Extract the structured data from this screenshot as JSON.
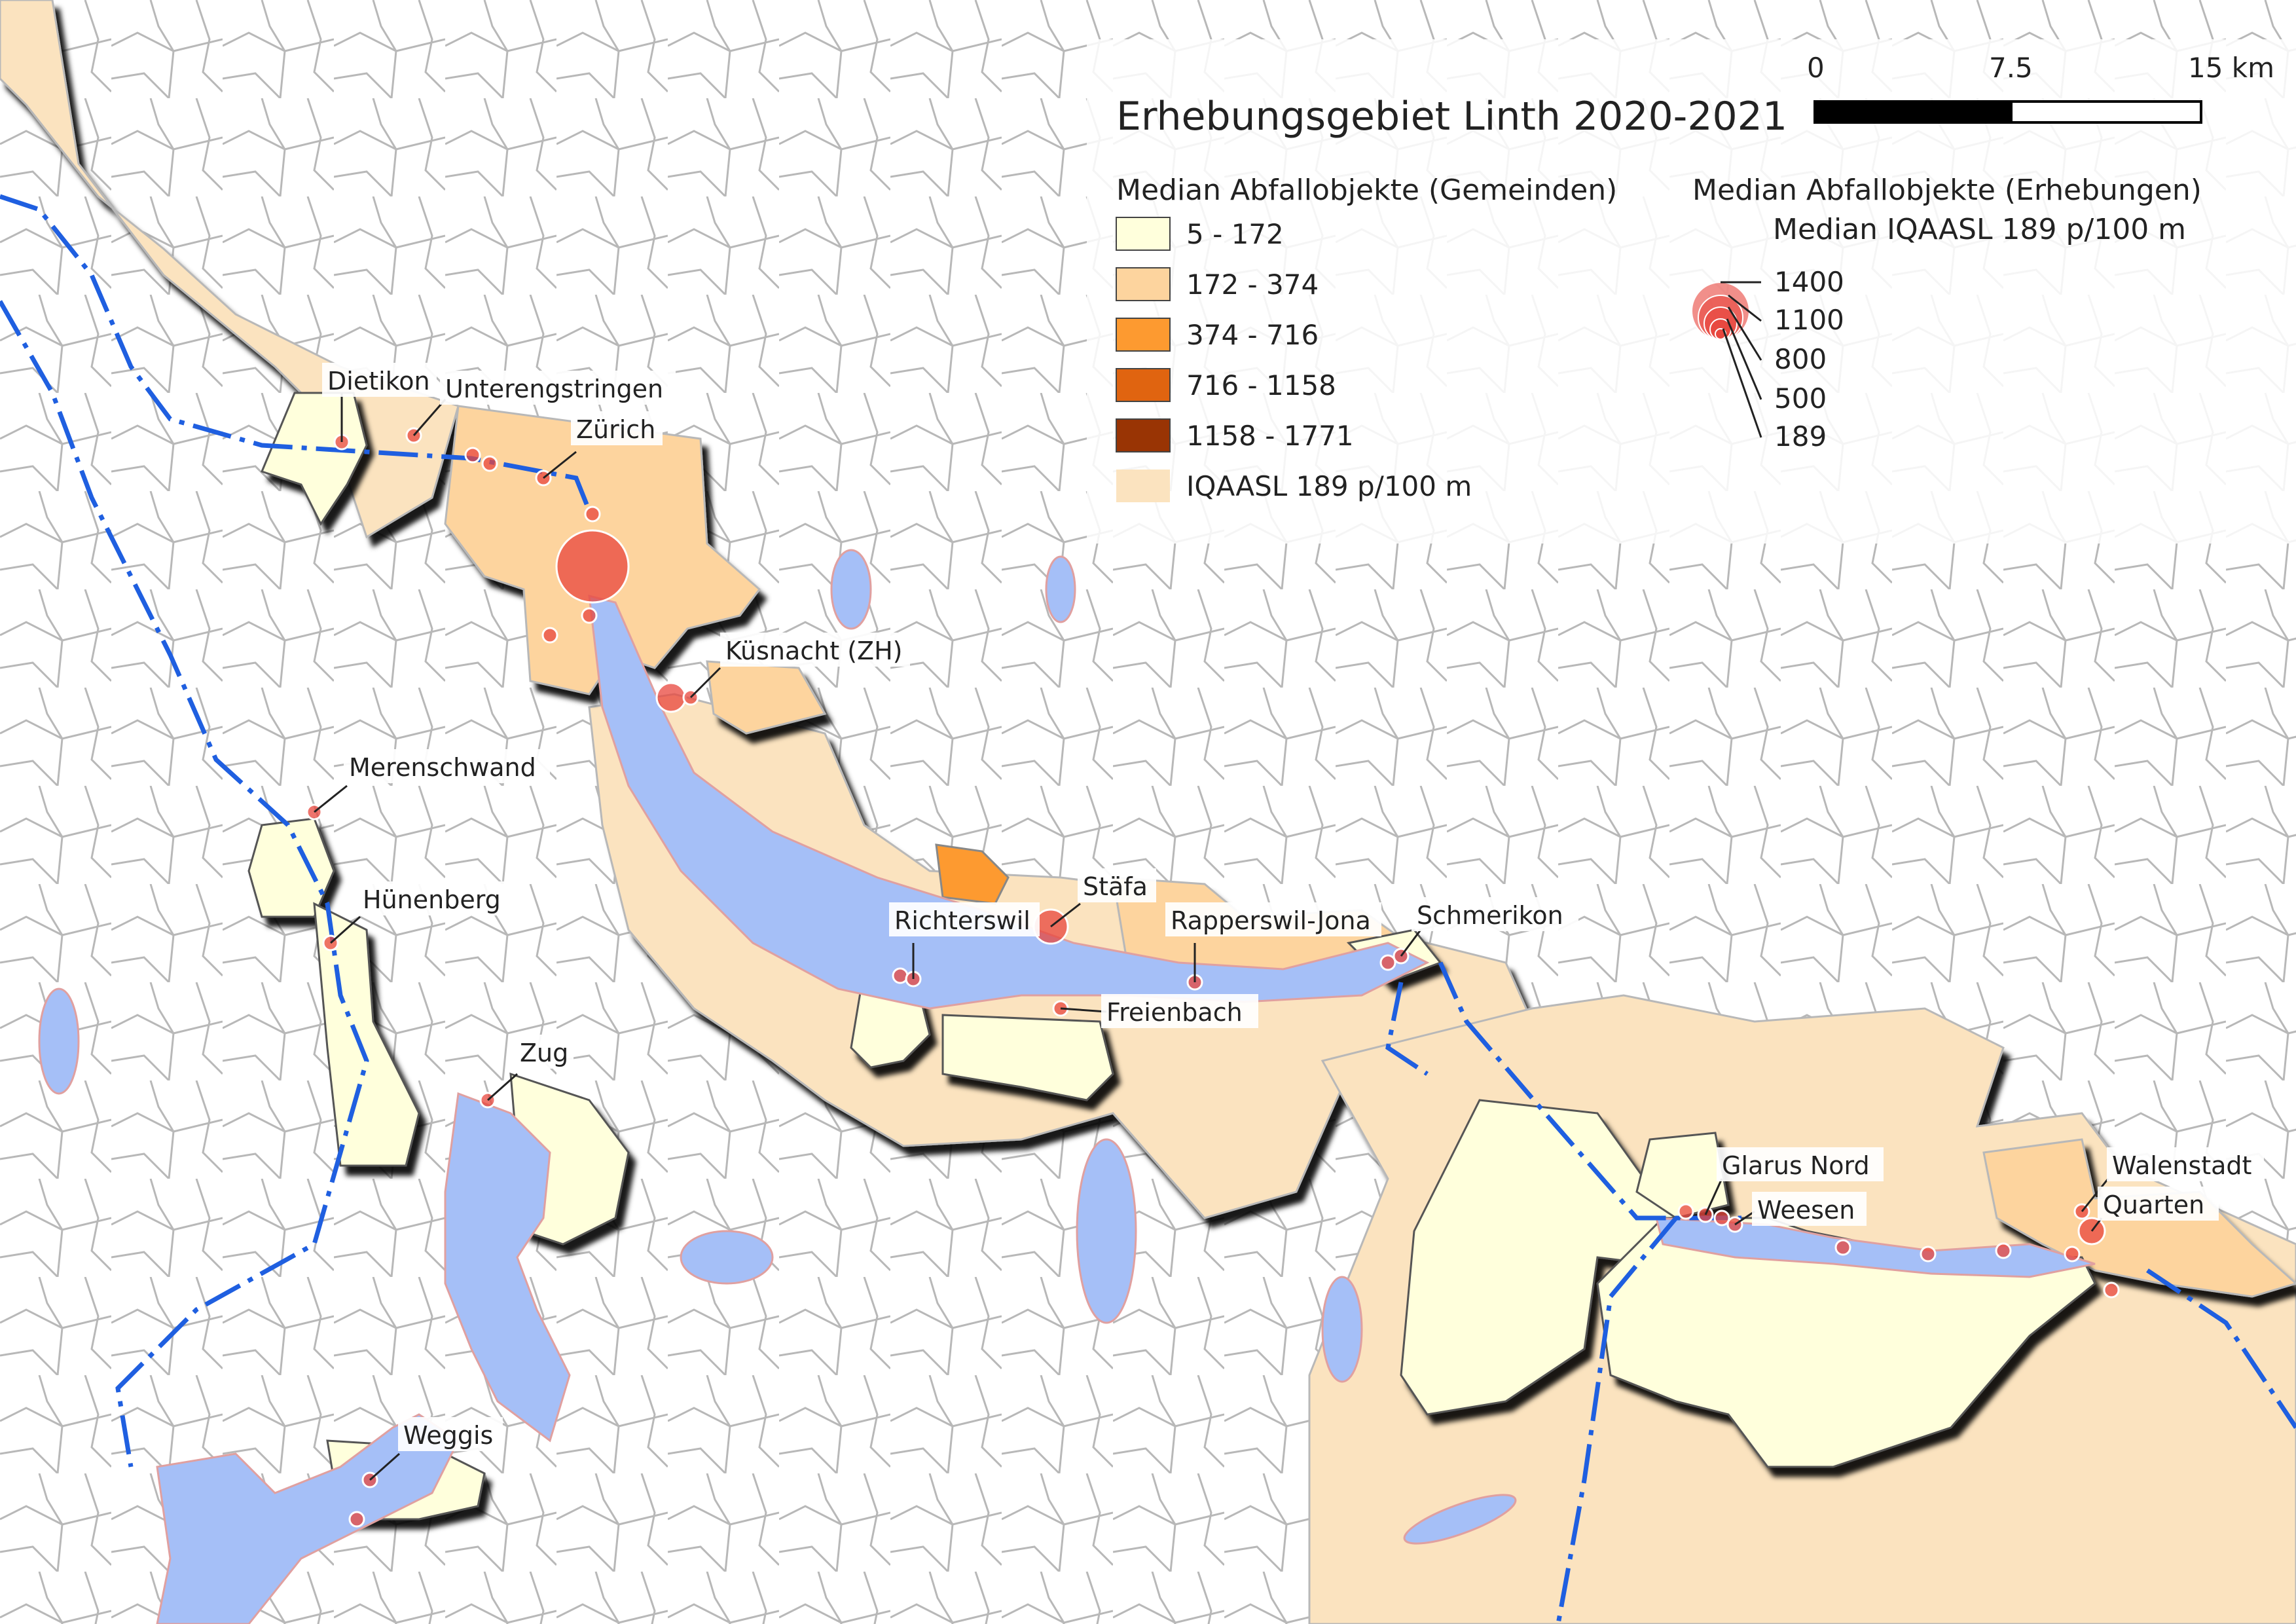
{
  "title": "Erhebungsgebiet Linth 2020-2021",
  "scalebar": {
    "ticks": [
      "0",
      "7.5",
      "15 km"
    ]
  },
  "legend_gemeinden": {
    "heading": "Median Abfallobjekte (Gemeinden)",
    "classes": [
      {
        "label": "5 - 172",
        "color": "#ffffdc"
      },
      {
        "label": "172 - 374",
        "color": "#fdd49e"
      },
      {
        "label": "374 - 716",
        "color": "#fd9a30"
      },
      {
        "label": "716 - 1158",
        "color": "#e06410"
      },
      {
        "label": "1158 - 1771",
        "color": "#993404"
      },
      {
        "label": "IQAASL 189 p/100 m",
        "color": "#fbe3bf"
      }
    ]
  },
  "legend_erhebungen": {
    "heading": "Median Abfallobjekte (Erhebungen)",
    "subheading": "Median IQAASL 189 p/100 m",
    "sizes": [
      "1400",
      "1100",
      "800",
      "500",
      "189"
    ]
  },
  "places": [
    "Dietikon",
    "Unterengstringen",
    "Zürich",
    "Küsnacht (ZH)",
    "Merenschwand",
    "Hünenberg",
    "Zug",
    "Weggis",
    "Richterswil",
    "Stäfa",
    "Rapperswil-Jona",
    "Freienbach",
    "Schmerikon",
    "Glarus Nord",
    "Weesen",
    "Walenstadt",
    "Quarten"
  ],
  "colors": {
    "water": "#a5bff7",
    "river": "#1f5fe0",
    "boundary": "#a6a6a6",
    "survey_point": "#e8453c"
  }
}
